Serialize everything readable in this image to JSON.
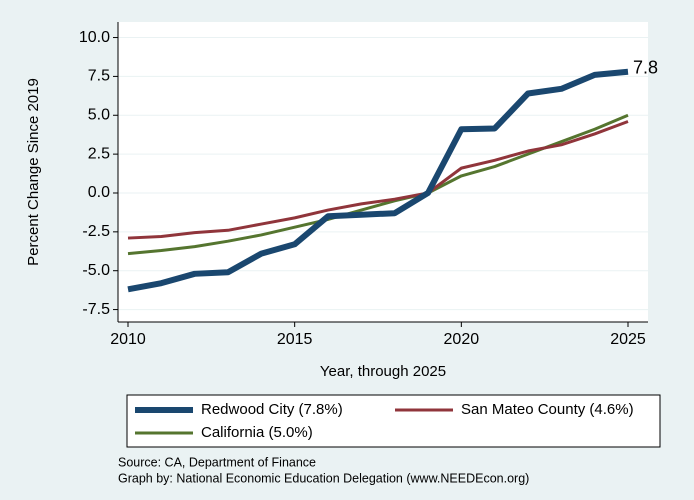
{
  "chart_data": {
    "type": "line",
    "xlabel": "Year, through 2025",
    "ylabel": "Percent Change Since 2019",
    "x": [
      2010,
      2011,
      2012,
      2013,
      2014,
      2015,
      2016,
      2017,
      2018,
      2019,
      2020,
      2021,
      2022,
      2023,
      2024,
      2025
    ],
    "series": [
      {
        "name": "Redwood City (7.8%)",
        "color": "#1a476f",
        "values": [
          -6.2,
          -5.8,
          -5.2,
          -5.1,
          -3.9,
          -3.3,
          -1.5,
          -1.4,
          -1.3,
          0,
          4.1,
          4.15,
          6.4,
          6.7,
          7.6,
          7.8
        ]
      },
      {
        "name": "San Mateo County (4.6%)",
        "color": "#90353b",
        "values": [
          -2.9,
          -2.8,
          -2.55,
          -2.4,
          -2.0,
          -1.6,
          -1.1,
          -0.7,
          -0.4,
          0,
          1.6,
          2.1,
          2.7,
          3.1,
          3.8,
          4.6
        ]
      },
      {
        "name": "California (5.0%)",
        "color": "#55752f",
        "values": [
          -3.9,
          -3.7,
          -3.45,
          -3.1,
          -2.7,
          -2.2,
          -1.7,
          -1.1,
          -0.5,
          0,
          1.1,
          1.7,
          2.5,
          3.3,
          4.1,
          5.0
        ]
      }
    ],
    "annotations": [
      {
        "text": "7.8",
        "x": 2025,
        "y": 7.8
      }
    ],
    "xlim": [
      2009.7,
      2025.6
    ],
    "xticks": [
      2010,
      2015,
      2020,
      2025
    ],
    "ylim": [
      -8.3,
      11
    ],
    "yticks": [
      {
        "value": 10,
        "label": "10.0"
      },
      7.5,
      {
        "value": 5,
        "label": "5.0"
      },
      2.5,
      {
        "value": 0,
        "label": "0.0"
      },
      -2.5,
      {
        "value": -5,
        "label": "-5.0"
      },
      -7.5
    ],
    "grid": true,
    "source": "Source: CA, Department of Finance",
    "credit": "Graph by: National Economic Education Delegation (www.NEEDEcon.org)"
  }
}
